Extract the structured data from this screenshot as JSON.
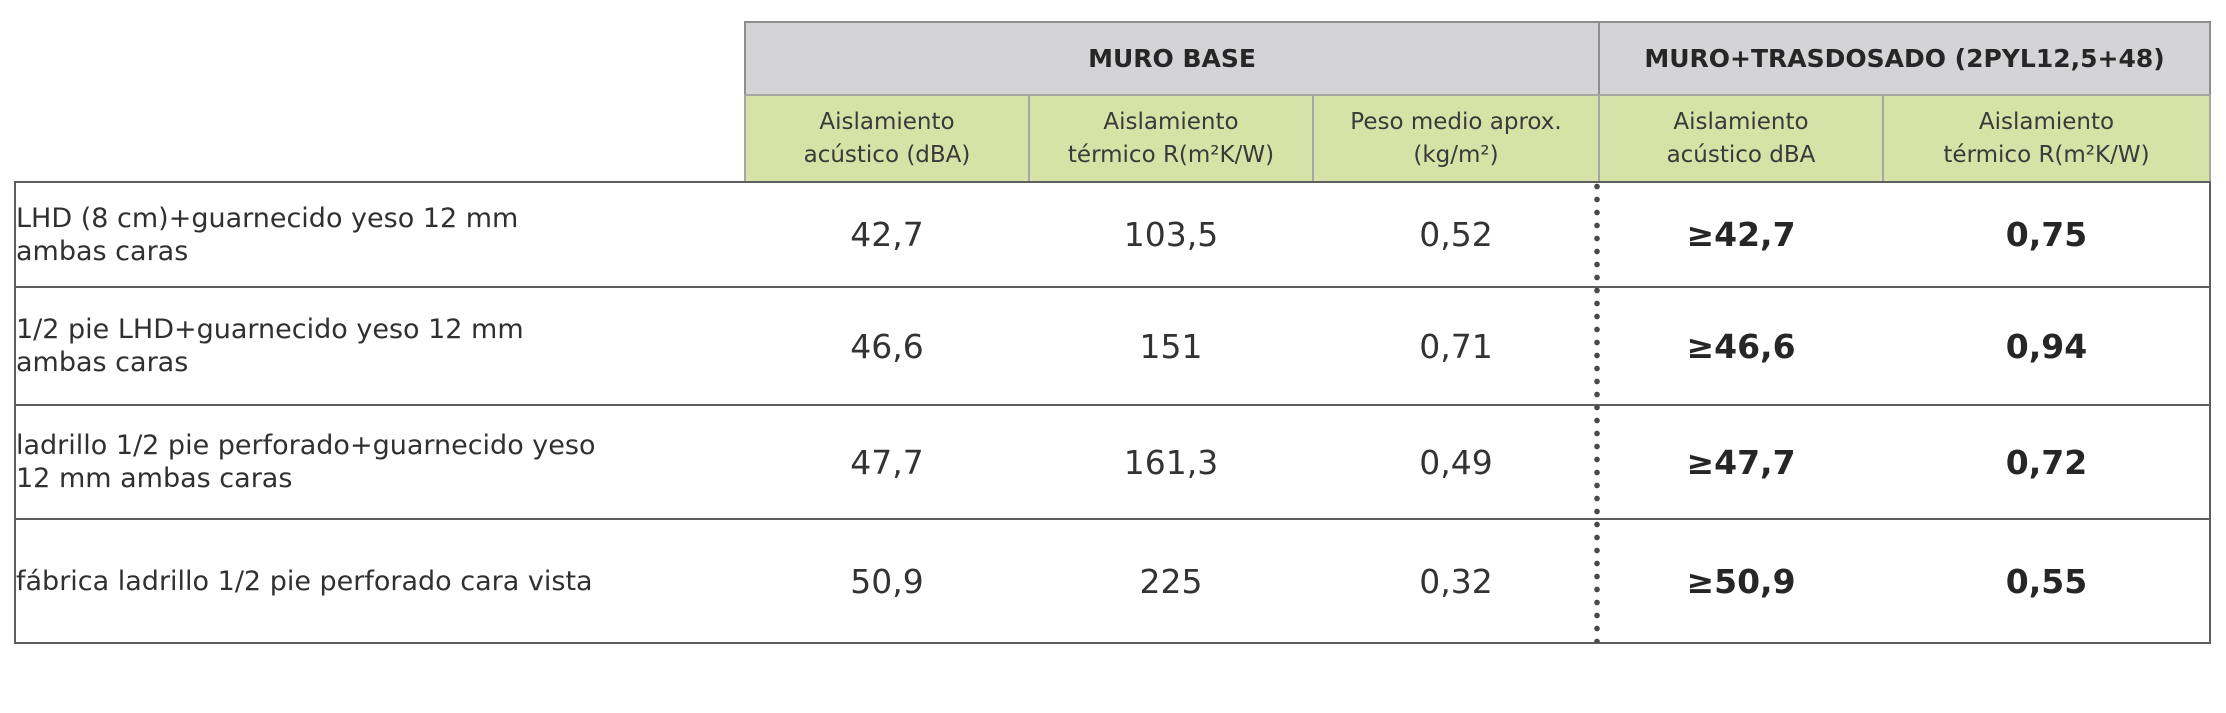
{
  "header": {
    "group1": "MURO BASE",
    "group2": "MURO+TRASDOSADO (2PYL12,5+48)",
    "col1": "Aislamiento\nacústico (dBA)",
    "col2": "Aislamiento\ntérmico  R(m²K/W)",
    "col3": "Peso medio aprox.\n(kg/m²)",
    "col4": "Aislamiento\nacústico dBA",
    "col5": "Aislamiento\ntérmico  R(m²K/W)"
  },
  "rows": [
    {
      "label": "LHD (8 cm)+guarnecido yeso 12 mm\nambas caras",
      "c1": "42,7",
      "c2": "103,5",
      "c3": "0,52",
      "c4": "≥42,7",
      "c5": "0,75"
    },
    {
      "label": "1/2 pie LHD+guarnecido yeso 12 mm\nambas caras",
      "c1": "46,6",
      "c2": "151",
      "c3": "0,71",
      "c4": "≥46,6",
      "c5": "0,94"
    },
    {
      "label": "ladrillo 1/2 pie perforado+guarnecido yeso\n12 mm ambas caras",
      "c1": "47,7",
      "c2": "161,3",
      "c3": "0,49",
      "c4": "≥47,7",
      "c5": "0,72"
    },
    {
      "label": "fábrica ladrillo 1/2 pie perforado cara vista",
      "c1": "50,9",
      "c2": "225",
      "c3": "0,32",
      "c4": "≥50,9",
      "c5": "0,55"
    }
  ]
}
